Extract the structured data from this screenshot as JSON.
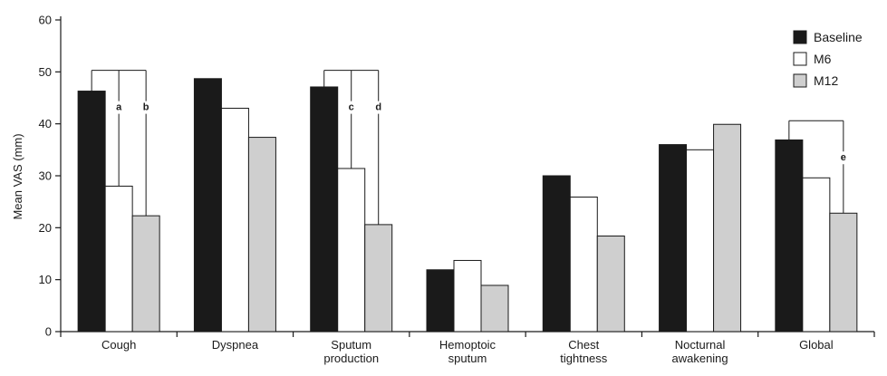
{
  "chart_data": {
    "type": "bar",
    "title": "",
    "xlabel": "",
    "ylabel": "Mean VAS (mm)",
    "ylim": [
      0,
      60
    ],
    "yticks": [
      0,
      10,
      20,
      30,
      40,
      50,
      60
    ],
    "grid": false,
    "legend_position": "top-right",
    "categories": [
      [
        "Cough"
      ],
      [
        "Dyspnea"
      ],
      [
        "Sputum",
        "production"
      ],
      [
        "Hemoptoic",
        "sputum"
      ],
      [
        "Chest",
        "tightness"
      ],
      [
        "Nocturnal",
        "awakening"
      ],
      [
        "Global"
      ]
    ],
    "series": [
      {
        "name": "Baseline",
        "color": "#1a1a1a",
        "values": [
          46.3,
          48.7,
          47.1,
          11.9,
          30.0,
          36.0,
          36.9
        ]
      },
      {
        "name": "M6",
        "color": "#ffffff",
        "values": [
          28.0,
          43.0,
          31.4,
          13.7,
          25.9,
          35.0,
          29.6
        ]
      },
      {
        "name": "M12",
        "color": "#cfcfcf",
        "values": [
          22.3,
          37.4,
          20.6,
          8.9,
          18.4,
          39.9,
          22.8
        ]
      }
    ],
    "annotations": [
      {
        "label": "a",
        "category": 0,
        "from_series": 0,
        "to_series": 1,
        "bracket_y": 50.3
      },
      {
        "label": "b",
        "category": 0,
        "from_series": 0,
        "to_series": 2,
        "bracket_y": 50.3
      },
      {
        "label": "c",
        "category": 2,
        "from_series": 0,
        "to_series": 1,
        "bracket_y": 50.3
      },
      {
        "label": "d",
        "category": 2,
        "from_series": 0,
        "to_series": 2,
        "bracket_y": 50.3
      },
      {
        "label": "e",
        "category": 6,
        "from_series": 0,
        "to_series": 2,
        "bracket_y": 40.6
      }
    ]
  }
}
